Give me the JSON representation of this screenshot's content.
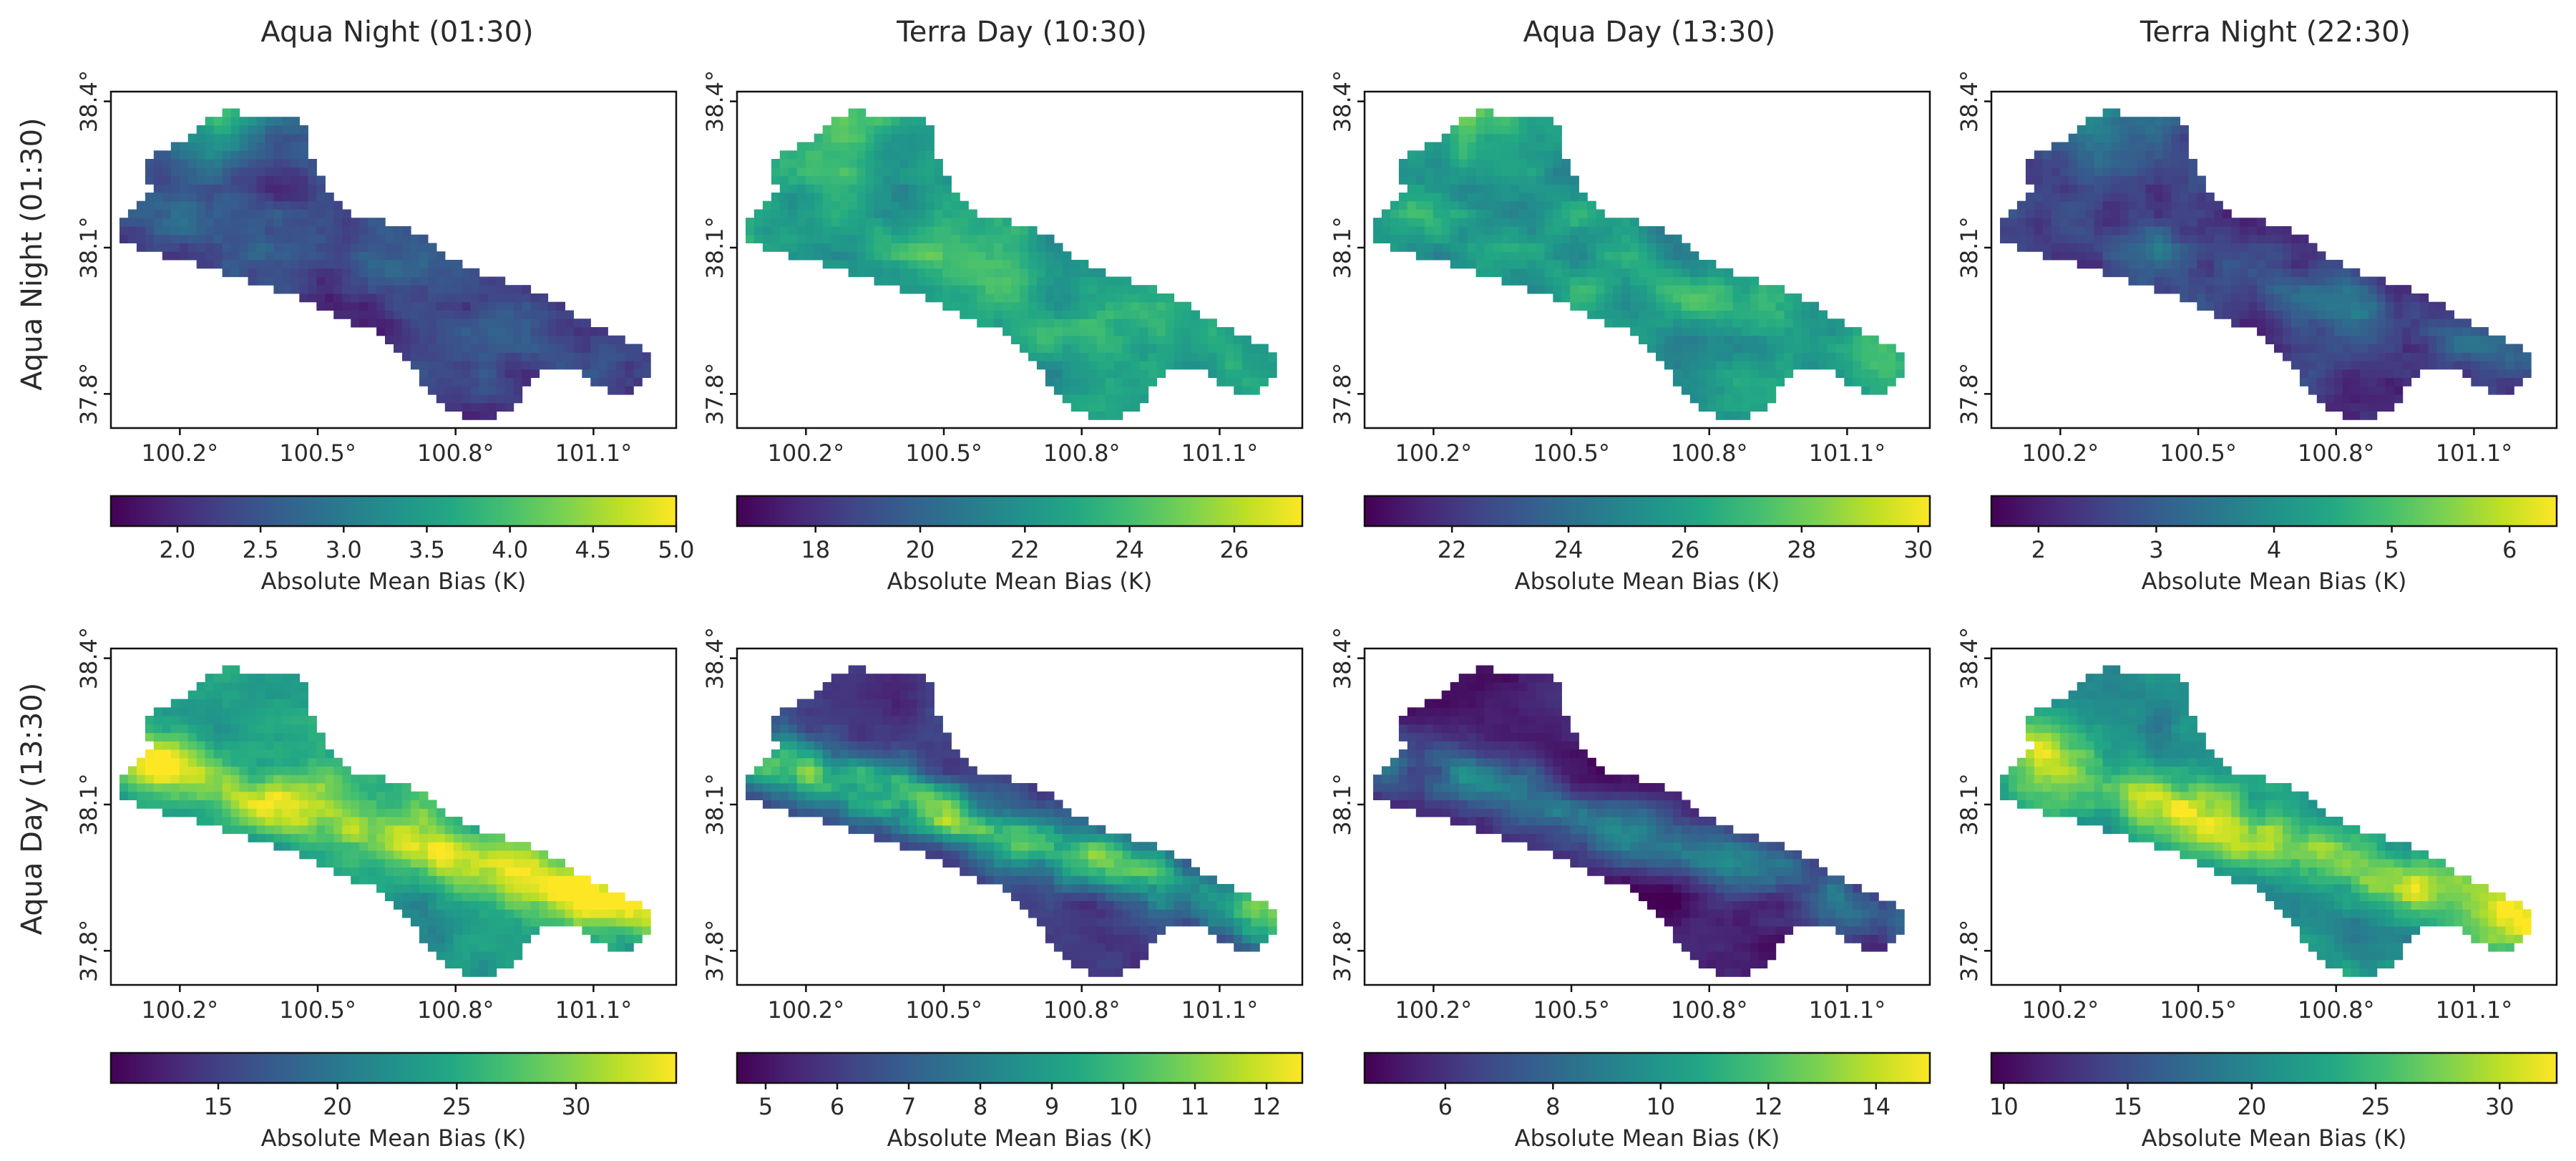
{
  "chart_data": {
    "type": "heatmap",
    "title": "",
    "column_titles": [
      "Aqua Night (01:30)",
      "Terra Day (10:30)",
      "Aqua Day (13:30)",
      "Terra Night (22:30)"
    ],
    "row_labels": [
      "Aqua Night (01:30)",
      "Aqua Day (13:30)"
    ],
    "xlabel": "",
    "ylabel": "",
    "xlim": [
      100.05,
      101.28
    ],
    "ylim": [
      37.73,
      38.42
    ],
    "x_ticks": [
      100.2,
      100.5,
      100.8,
      101.1
    ],
    "y_ticks": [
      38.4,
      38.1,
      37.8
    ],
    "x_tick_labels": [
      "100.2°",
      "100.5°",
      "100.8°",
      "101.1°"
    ],
    "y_tick_labels": [
      "38.4°",
      "38.1°",
      "37.8°"
    ],
    "colormap": "viridis",
    "colorbar_label": "Absolute Mean Bias (K)",
    "panels": [
      {
        "row": 0,
        "col": 0,
        "vmin": 1.6,
        "vmax": 5.0,
        "colorbar_ticks": [
          2.0,
          2.5,
          3.0,
          3.5,
          4.0,
          4.5,
          5.0
        ],
        "colorbar_tick_labels": [
          "2.0",
          "2.5",
          "3.0",
          "3.5",
          "4.0",
          "4.5",
          "5.0"
        ],
        "pattern": "north-high",
        "base": 0.18,
        "ridge": 0.08,
        "north": 0.55
      },
      {
        "row": 0,
        "col": 1,
        "vmin": 16.5,
        "vmax": 27.3,
        "colorbar_ticks": [
          18,
          20,
          22,
          24,
          26
        ],
        "colorbar_tick_labels": [
          "18",
          "20",
          "22",
          "24",
          "26"
        ],
        "pattern": "uniform-high",
        "base": 0.55,
        "ridge": 0.08,
        "north": 0.25
      },
      {
        "row": 0,
        "col": 2,
        "vmin": 20.5,
        "vmax": 30.2,
        "colorbar_ticks": [
          22,
          24,
          26,
          28,
          30
        ],
        "colorbar_tick_labels": [
          "22",
          "24",
          "26",
          "28",
          "30"
        ],
        "pattern": "uniform-high",
        "base": 0.5,
        "ridge": 0.1,
        "north": 0.35
      },
      {
        "row": 0,
        "col": 3,
        "vmin": 1.6,
        "vmax": 6.4,
        "colorbar_ticks": [
          2,
          3,
          4,
          5,
          6
        ],
        "colorbar_tick_labels": [
          "2",
          "3",
          "4",
          "5",
          "6"
        ],
        "pattern": "north-high",
        "base": 0.15,
        "ridge": 0.12,
        "north": 0.5
      },
      {
        "row": 1,
        "col": 0,
        "vmin": 10.5,
        "vmax": 34.2,
        "colorbar_ticks": [
          15,
          20,
          25,
          30
        ],
        "colorbar_tick_labels": [
          "15",
          "20",
          "25",
          "30"
        ],
        "pattern": "ridge-high",
        "base": 0.55,
        "ridge": 0.35,
        "north": 0.0
      },
      {
        "row": 1,
        "col": 1,
        "vmin": 4.6,
        "vmax": 12.5,
        "colorbar_ticks": [
          5,
          6,
          7,
          8,
          9,
          10,
          11,
          12
        ],
        "colorbar_tick_labels": [
          "5",
          "6",
          "7",
          "8",
          "9",
          "10",
          "11",
          "12"
        ],
        "pattern": "ridge",
        "base": 0.15,
        "ridge": 0.55,
        "north": 0.0
      },
      {
        "row": 1,
        "col": 2,
        "vmin": 4.5,
        "vmax": 15.0,
        "colorbar_ticks": [
          6,
          8,
          10,
          12,
          14
        ],
        "colorbar_tick_labels": [
          "6",
          "8",
          "10",
          "12",
          "14"
        ],
        "pattern": "ridge",
        "base": 0.06,
        "ridge": 0.3,
        "north": 0.0
      },
      {
        "row": 1,
        "col": 3,
        "vmin": 9.5,
        "vmax": 32.3,
        "colorbar_ticks": [
          10,
          15,
          20,
          25,
          30
        ],
        "colorbar_tick_labels": [
          "10",
          "15",
          "20",
          "25",
          "30"
        ],
        "pattern": "ridge-high",
        "base": 0.5,
        "ridge": 0.38,
        "north": 0.0
      }
    ]
  }
}
